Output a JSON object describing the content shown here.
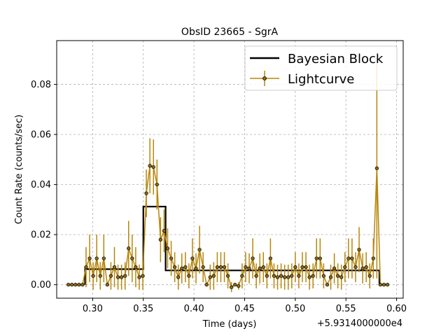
{
  "chart_data": {
    "type": "line",
    "title": "ObsID 23665 - SgrA",
    "xlabel": "Time (days)",
    "ylabel": "Count Rate (counts/sec)",
    "x_offset_label": "+5.9314000000e4",
    "xlim": [
      0.2645,
      0.6065
    ],
    "ylim": [
      -0.0054,
      0.0975
    ],
    "xticks": [
      0.3,
      0.35,
      0.4,
      0.45,
      0.5,
      0.55,
      0.6
    ],
    "xtick_labels": [
      "0.30",
      "0.35",
      "0.40",
      "0.45",
      "0.50",
      "0.55",
      "0.60"
    ],
    "yticks": [
      0.0,
      0.02,
      0.04,
      0.06,
      0.08
    ],
    "ytick_labels": [
      "0.00",
      "0.02",
      "0.04",
      "0.06",
      "0.08"
    ],
    "grid": true,
    "legend_position": "top-right",
    "colors": {
      "block": "#000000",
      "lightcurve": "#b8860b",
      "marker_fill": "#8b6914"
    },
    "series": [
      {
        "name": "Bayesian Block",
        "style": "step",
        "points": [
          [
            0.2925,
            0.0
          ],
          [
            0.2925,
            0.0062
          ],
          [
            0.35,
            0.0062
          ],
          [
            0.35,
            0.0312
          ],
          [
            0.372,
            0.0312
          ],
          [
            0.372,
            0.0057
          ],
          [
            0.583,
            0.0057
          ],
          [
            0.583,
            0.0
          ]
        ]
      },
      {
        "name": "Lightcurve",
        "style": "errorbar",
        "x": [
          0.276,
          0.2795,
          0.283,
          0.2865,
          0.29,
          0.2935,
          0.297,
          0.3005,
          0.304,
          0.3075,
          0.311,
          0.3145,
          0.318,
          0.3215,
          0.325,
          0.3285,
          0.332,
          0.3355,
          0.339,
          0.3425,
          0.346,
          0.3495,
          0.353,
          0.3565,
          0.36,
          0.3635,
          0.367,
          0.3705,
          0.374,
          0.3775,
          0.381,
          0.3845,
          0.388,
          0.3915,
          0.395,
          0.3985,
          0.402,
          0.4055,
          0.409,
          0.4125,
          0.416,
          0.4195,
          0.423,
          0.4265,
          0.43,
          0.4335,
          0.437,
          0.4405,
          0.444,
          0.4475,
          0.451,
          0.4545,
          0.458,
          0.4615,
          0.465,
          0.4685,
          0.472,
          0.4755,
          0.479,
          0.4825,
          0.486,
          0.4895,
          0.493,
          0.4965,
          0.5,
          0.5035,
          0.507,
          0.5105,
          0.514,
          0.5175,
          0.521,
          0.5245,
          0.528,
          0.5315,
          0.535,
          0.5385,
          0.542,
          0.5455,
          0.549,
          0.5525,
          0.556,
          0.5595,
          0.563,
          0.5665,
          0.57,
          0.5735,
          0.577,
          0.5805,
          0.584,
          0.5875,
          0.591
        ],
        "y": [
          0.0,
          0.0,
          0.0,
          0.0,
          0.0,
          0.007,
          0.0105,
          0.0035,
          0.0105,
          0.0035,
          0.0105,
          0.0,
          0.0035,
          0.007,
          0.003,
          0.003,
          0.0035,
          0.0145,
          0.0105,
          0.007,
          0.003,
          0.0035,
          0.0365,
          0.0475,
          0.047,
          0.04,
          0.018,
          0.0215,
          0.0145,
          0.0105,
          0.007,
          0.003,
          0.0065,
          0.007,
          0.0035,
          0.0105,
          0.0065,
          0.014,
          0.007,
          0.0,
          0.003,
          0.0035,
          0.007,
          0.007,
          0.007,
          0.0035,
          -0.001,
          0.0,
          -0.0005,
          0.0035,
          0.007,
          0.0065,
          0.0105,
          0.0035,
          0.0065,
          0.007,
          0.0035,
          0.0105,
          0.0035,
          0.003,
          0.0035,
          0.003,
          0.003,
          0.0035,
          0.007,
          0.0035,
          0.007,
          0.007,
          0.003,
          0.0035,
          0.0105,
          0.0105,
          0.0035,
          0.0,
          0.003,
          0.0065,
          0.0035,
          0.003,
          0.007,
          0.0105,
          0.0105,
          0.007,
          0.014,
          0.0065,
          0.007,
          0.0035,
          0.0105,
          0.0465,
          0.0,
          0.0,
          0.0
        ],
        "yerr": [
          0,
          0,
          0,
          0,
          0,
          0.008,
          0.0095,
          0.0055,
          0.0095,
          0.0055,
          0.0095,
          0,
          0.0055,
          0.008,
          0.005,
          0.005,
          0.0055,
          0.011,
          0.0095,
          0.008,
          0.005,
          0.0055,
          0.0095,
          0.011,
          0.011,
          0.01,
          0.009,
          0.0085,
          0.008,
          0.007,
          0.006,
          0.005,
          0.006,
          0.006,
          0.005,
          0.008,
          0.006,
          0.0095,
          0.006,
          0,
          0.005,
          0.0055,
          0.006,
          0.006,
          0.006,
          0.005,
          0.002,
          0,
          0.0015,
          0.005,
          0.006,
          0.006,
          0.008,
          0.005,
          0.006,
          0.006,
          0.005,
          0.008,
          0.005,
          0.005,
          0.005,
          0.005,
          0.005,
          0.005,
          0.006,
          0.005,
          0.006,
          0.006,
          0.005,
          0.005,
          0.008,
          0.008,
          0.005,
          0,
          0.005,
          0.006,
          0.005,
          0.005,
          0.006,
          0.008,
          0.008,
          0.006,
          0.009,
          0.006,
          0.006,
          0.005,
          0.008,
          0.044,
          0,
          0,
          0
        ]
      }
    ]
  }
}
